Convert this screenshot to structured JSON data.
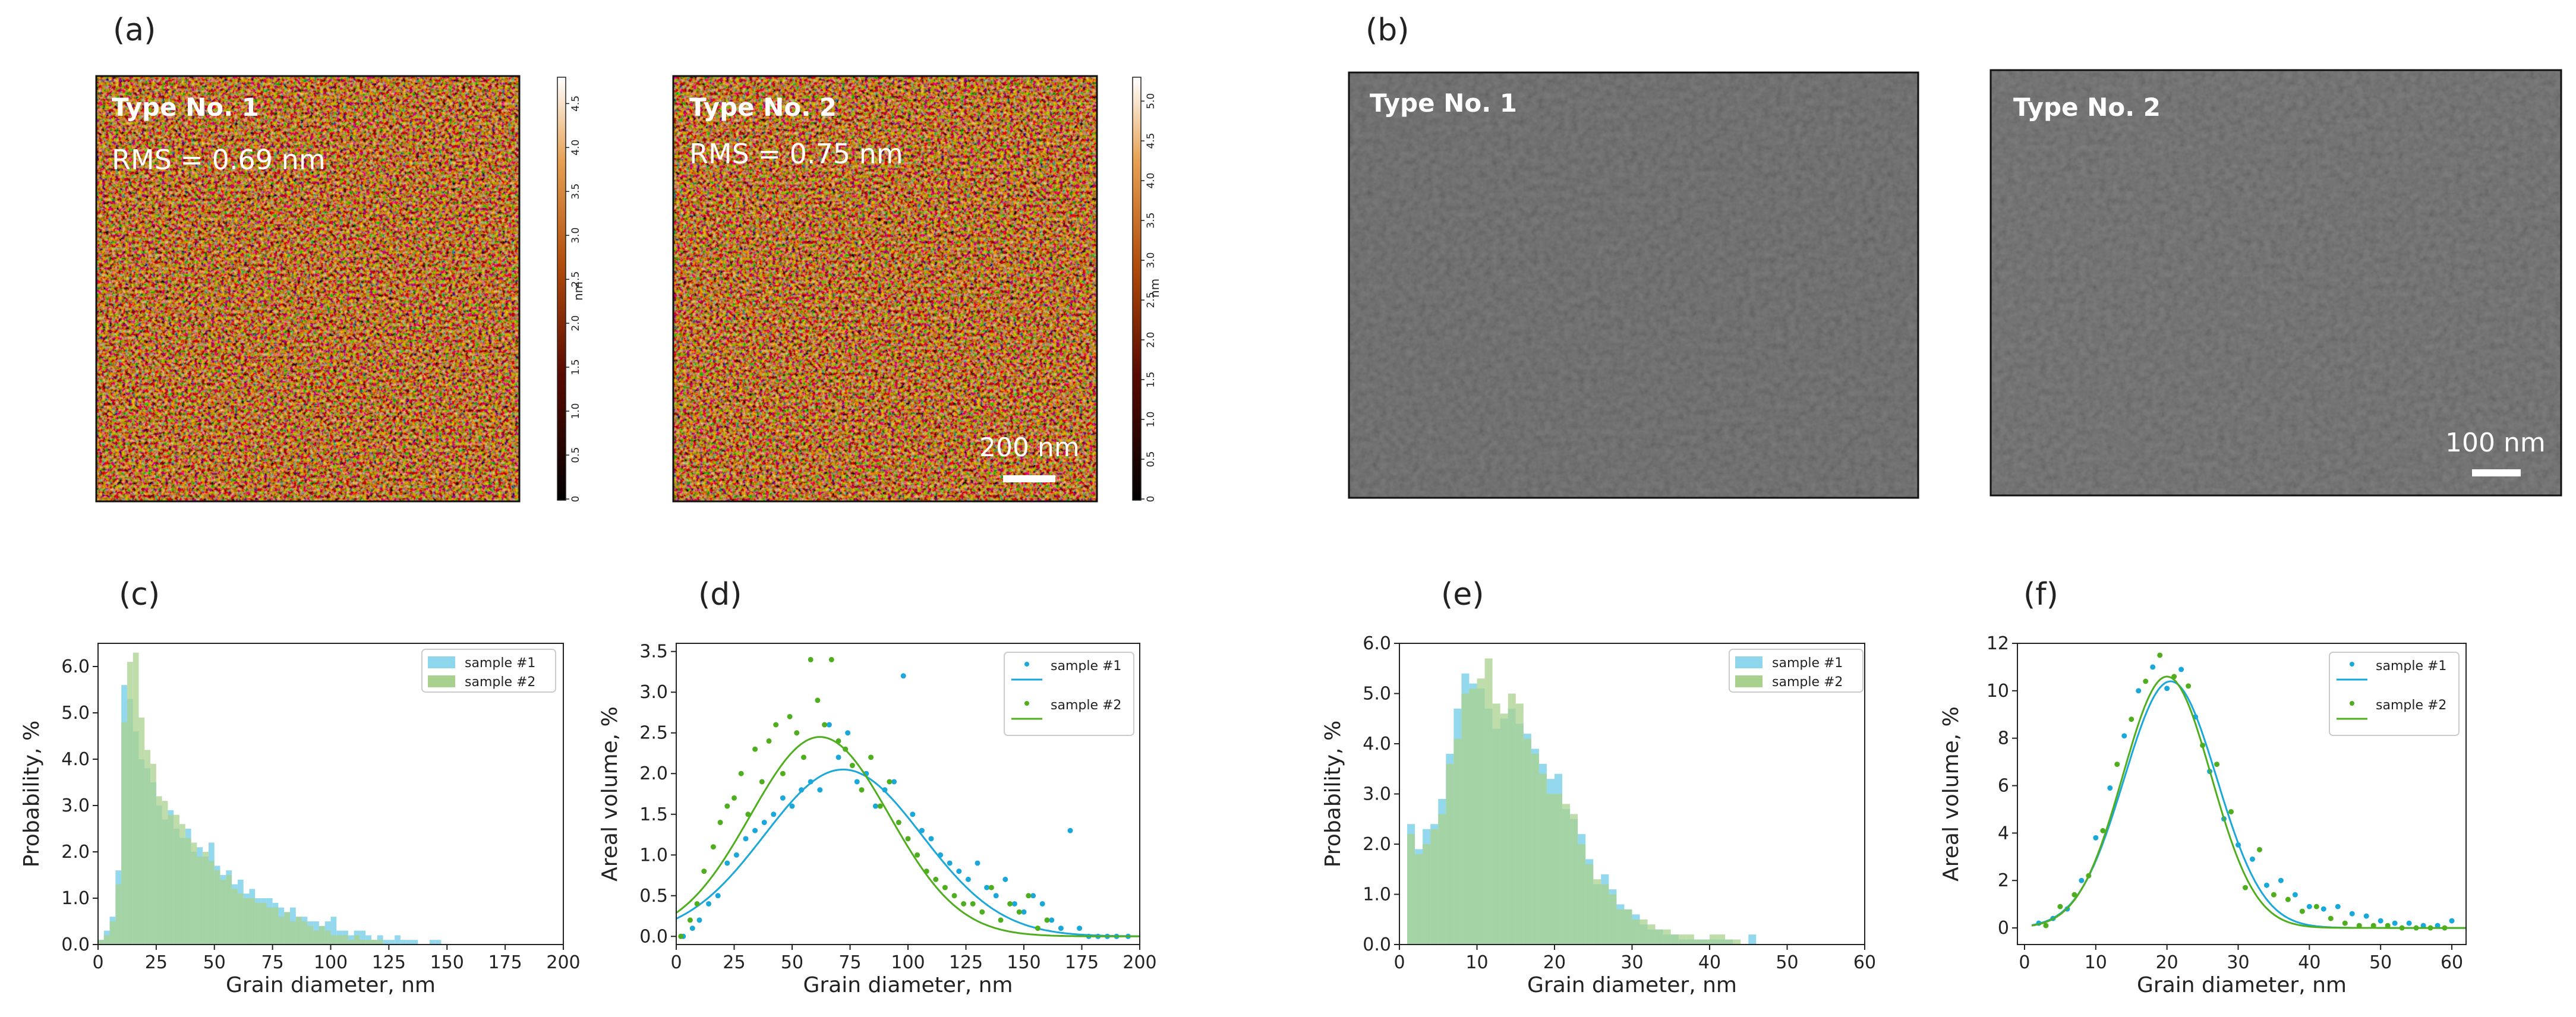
{
  "panel_labels": {
    "a": "(a)",
    "b": "(b)",
    "c": "(c)",
    "d": "(d)",
    "e": "(e)",
    "f": "(f)"
  },
  "afm": {
    "image1": {
      "type_label": "Type No. 1",
      "rms_label": "RMS = 0.69 nm"
    },
    "image2": {
      "type_label": "Type No. 2",
      "rms_label": "RMS = 0.75 nm",
      "scale_label": "200 nm"
    },
    "colorbar1": {
      "unit": "nm",
      "ticks": [
        "0",
        "0.5",
        "1.0",
        "1.5",
        "2.0",
        "2.5",
        "3.0",
        "3.5",
        "4.0",
        "4.5"
      ]
    },
    "colorbar2": {
      "unit": "nm",
      "ticks": [
        "0",
        "0.5",
        "1.0",
        "1.5",
        "2.0",
        "2.5",
        "3.0",
        "3.5",
        "4.0",
        "4.5",
        "5.0"
      ]
    }
  },
  "sem": {
    "image1": {
      "type_label": "Type No. 1"
    },
    "image2": {
      "type_label": "Type No. 2",
      "scale_label": "100 nm"
    }
  },
  "colors": {
    "sample1": "#1aa7d9",
    "sample2": "#4fae1e",
    "hist1": "#8ed6ec",
    "hist2": "#a9d18e",
    "overlap": "#7ec89a"
  },
  "chart_data": [
    {
      "id": "c",
      "type": "bar",
      "title": "",
      "xlabel": "Grain diameter, nm",
      "ylabel": "Probability, %",
      "xlim": [
        0,
        200
      ],
      "ylim": [
        0,
        6.5
      ],
      "xticks": [
        "0",
        "25",
        "50",
        "75",
        "100",
        "125",
        "150",
        "175",
        "200"
      ],
      "yticks": [
        "0.0",
        "1.0",
        "2.0",
        "3.0",
        "4.0",
        "5.0",
        "6.0"
      ],
      "bin_start": 0,
      "bin_width": 2.5,
      "series": [
        {
          "name": "sample #1",
          "values": [
            0.1,
            0.3,
            0.6,
            1.6,
            5.6,
            5.3,
            4.6,
            4.0,
            3.8,
            3.5,
            3.0,
            2.7,
            2.9,
            2.5,
            2.3,
            2.5,
            2.0,
            2.1,
            1.9,
            2.2,
            1.7,
            1.5,
            1.6,
            1.3,
            1.4,
            1.1,
            1.2,
            1.0,
            1.0,
            1.0,
            0.9,
            0.8,
            0.7,
            0.8,
            0.6,
            0.6,
            0.5,
            0.5,
            0.4,
            0.5,
            0.6,
            0.3,
            0.3,
            0.2,
            0.3,
            0.3,
            0.2,
            0.1,
            0.2,
            0.1,
            0.1,
            0.2,
            0.1,
            0.1,
            0.1,
            0,
            0,
            0.1,
            0.1,
            0
          ]
        },
        {
          "name": "sample #2",
          "values": [
            0.1,
            0.2,
            0.5,
            1.3,
            4.8,
            6.1,
            6.3,
            4.9,
            4.2,
            3.9,
            3.2,
            3.1,
            2.8,
            2.8,
            2.6,
            2.3,
            2.2,
            1.9,
            2.0,
            1.8,
            1.6,
            1.4,
            1.5,
            1.2,
            1.1,
            1.0,
            1.0,
            0.9,
            0.9,
            0.8,
            0.8,
            0.6,
            0.7,
            0.5,
            0.6,
            0.5,
            0.4,
            0.3,
            0.4,
            0.3,
            0.2,
            0.2,
            0.2,
            0.1,
            0.2,
            0.1,
            0.1,
            0.1,
            0.1,
            0,
            0,
            0,
            0,
            0,
            0,
            0,
            0,
            0,
            0,
            0
          ]
        }
      ]
    },
    {
      "id": "d",
      "type": "scatter",
      "title": "",
      "xlabel": "Grain diameter, nm",
      "ylabel": "Areal volume, %",
      "xlim": [
        0,
        200
      ],
      "ylim": [
        -0.1,
        3.6
      ],
      "xticks": [
        "0",
        "25",
        "50",
        "75",
        "100",
        "125",
        "150",
        "175",
        "200"
      ],
      "yticks": [
        "0.0",
        "0.5",
        "1.0",
        "1.5",
        "2.0",
        "2.5",
        "3.0",
        "3.5"
      ],
      "series": [
        {
          "name": "sample #1",
          "fit": {
            "amplitude": 2.05,
            "center": 72,
            "sigma": 34
          },
          "x": [
            3,
            7,
            10,
            14,
            18,
            22,
            26,
            30,
            34,
            38,
            42,
            46,
            50,
            54,
            58,
            62,
            66,
            70,
            74,
            78,
            82,
            86,
            90,
            94,
            98,
            102,
            106,
            110,
            114,
            118,
            122,
            126,
            130,
            134,
            138,
            142,
            146,
            150,
            154,
            158,
            162,
            166,
            170,
            174,
            178,
            182,
            186,
            190,
            195
          ],
          "y": [
            0,
            0.1,
            0.2,
            0.4,
            0.5,
            0.9,
            1.0,
            1.2,
            1.3,
            1.4,
            1.5,
            1.7,
            1.6,
            1.8,
            1.9,
            1.8,
            2.6,
            2.2,
            2.5,
            1.9,
            2.0,
            1.6,
            1.8,
            1.9,
            3.2,
            1.5,
            1.3,
            1.2,
            1.0,
            0.9,
            0.8,
            0.7,
            0.9,
            0.6,
            0.5,
            0.7,
            0.4,
            0.3,
            0.5,
            0.4,
            0.2,
            0.1,
            1.3,
            0.1,
            0,
            0,
            0,
            0,
            0
          ]
        },
        {
          "name": "sample #2",
          "fit": {
            "amplitude": 2.45,
            "center": 62,
            "sigma": 30
          },
          "x": [
            2,
            6,
            9,
            12,
            16,
            19,
            22,
            25,
            28,
            31,
            34,
            37,
            40,
            43,
            46,
            49,
            52,
            55,
            58,
            61,
            64,
            67,
            70,
            73,
            76,
            80,
            84,
            88,
            92,
            96,
            100,
            104,
            108,
            112,
            116,
            120,
            124,
            128,
            132,
            136,
            140,
            144,
            148,
            152,
            156,
            160
          ],
          "y": [
            0,
            0.2,
            0.4,
            0.8,
            1.1,
            1.4,
            1.6,
            1.7,
            2.0,
            1.5,
            2.3,
            1.9,
            2.4,
            2.6,
            2.0,
            2.7,
            2.5,
            2.2,
            3.4,
            2.9,
            2.6,
            3.4,
            2.4,
            2.3,
            2.1,
            1.8,
            2.2,
            1.6,
            1.9,
            1.4,
            1.2,
            1.0,
            0.8,
            0.7,
            0.6,
            0.5,
            0.4,
            0.4,
            0.3,
            0.6,
            0.2,
            0.4,
            0.3,
            0.5,
            0.1,
            0.2
          ]
        }
      ]
    },
    {
      "id": "e",
      "type": "bar",
      "title": "",
      "xlabel": "Grain diameter, nm",
      "ylabel": "Probability, %",
      "xlim": [
        0,
        60
      ],
      "ylim": [
        0,
        6.0
      ],
      "xticks": [
        "0",
        "10",
        "20",
        "30",
        "40",
        "50",
        "60"
      ],
      "yticks": [
        "0.0",
        "1.0",
        "2.0",
        "3.0",
        "4.0",
        "5.0",
        "6.0"
      ],
      "bin_start": 1,
      "bin_width": 1,
      "series": [
        {
          "name": "sample #1",
          "values": [
            2.4,
            1.9,
            2.3,
            2.4,
            2.9,
            3.8,
            4.7,
            5.4,
            5.2,
            5.1,
            4.7,
            4.3,
            4.5,
            4.7,
            4.4,
            4.2,
            3.9,
            3.6,
            3.3,
            3.4,
            2.7,
            2.5,
            2.2,
            1.7,
            1.2,
            1.4,
            1.1,
            0.8,
            0.7,
            0.6,
            0.4,
            0.3,
            0.3,
            0.2,
            0.2,
            0.1,
            0.1,
            0.1,
            0.1,
            0.1,
            0.1,
            0.1,
            0,
            0,
            0.2,
            0,
            0,
            0,
            0,
            0
          ]
        },
        {
          "name": "sample #2",
          "values": [
            2.2,
            1.8,
            2.0,
            2.3,
            2.6,
            3.6,
            4.1,
            5.0,
            5.1,
            5.3,
            5.7,
            4.8,
            4.6,
            5.0,
            4.8,
            4.1,
            3.8,
            3.4,
            3.0,
            3.0,
            2.8,
            2.6,
            2.0,
            1.6,
            1.3,
            1.2,
            1.0,
            0.7,
            0.7,
            0.5,
            0.5,
            0.4,
            0.3,
            0.3,
            0.2,
            0.2,
            0.2,
            0.1,
            0.1,
            0.2,
            0.2,
            0.1,
            0.1,
            0,
            0,
            0,
            0,
            0,
            0,
            0
          ]
        }
      ]
    },
    {
      "id": "f",
      "type": "scatter",
      "title": "",
      "xlabel": "Grain diameter, nm",
      "ylabel": "Areal volume, %",
      "xlim": [
        -1,
        62
      ],
      "ylim": [
        -0.7,
        12
      ],
      "xticks": [
        "0",
        "10",
        "20",
        "30",
        "40",
        "50",
        "60"
      ],
      "yticks": [
        "0",
        "2",
        "4",
        "6",
        "8",
        "10",
        "12"
      ],
      "series": [
        {
          "name": "sample #1",
          "fit": {
            "amplitude": 10.4,
            "center": 20.5,
            "sigma": 6.5
          },
          "x": [
            2,
            4,
            6,
            8,
            10,
            12,
            14,
            16,
            18,
            20,
            22,
            24,
            26,
            28,
            30,
            32,
            34,
            36,
            38,
            40,
            42,
            44,
            46,
            48,
            50,
            52,
            54,
            56,
            58,
            60
          ],
          "y": [
            0.2,
            0.4,
            0.8,
            2.0,
            3.8,
            5.9,
            8.1,
            10.0,
            11.0,
            10.1,
            10.9,
            8.9,
            6.6,
            4.6,
            3.5,
            2.9,
            1.8,
            2.0,
            1.4,
            0.9,
            0.8,
            0.9,
            0.6,
            0.5,
            0.3,
            0.2,
            0.2,
            0.1,
            0.1,
            0.3
          ]
        },
        {
          "name": "sample #2",
          "fit": {
            "amplitude": 10.6,
            "center": 20.0,
            "sigma": 6.2
          },
          "x": [
            3,
            5,
            7,
            9,
            11,
            13,
            15,
            17,
            19,
            21,
            23,
            25,
            27,
            29,
            31,
            33,
            35,
            37,
            39,
            41,
            43,
            45,
            47,
            49,
            51,
            53,
            55,
            57,
            59
          ],
          "y": [
            0.1,
            0.9,
            1.4,
            2.2,
            4.1,
            6.9,
            8.8,
            10.4,
            11.5,
            10.6,
            10.2,
            7.7,
            6.9,
            4.9,
            1.7,
            3.3,
            1.4,
            1.2,
            0.7,
            0.9,
            0.4,
            0.2,
            0.1,
            0.1,
            0.1,
            0,
            0,
            0,
            0
          ]
        }
      ]
    }
  ]
}
